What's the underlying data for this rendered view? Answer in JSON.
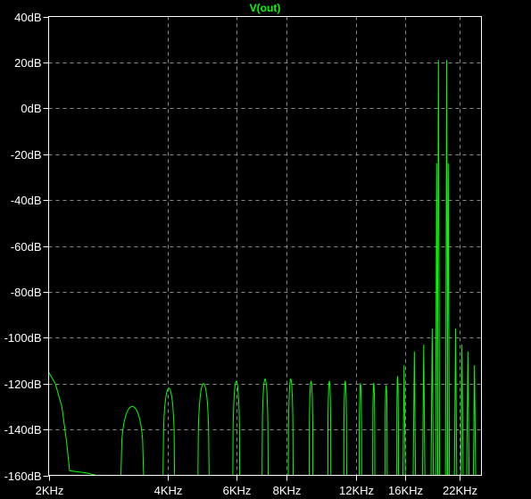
{
  "chart_data": {
    "type": "line",
    "title": "V(out)",
    "xlabel": "",
    "ylabel": "",
    "x_scale": "log",
    "xlim_hz": [
      2000,
      25000
    ],
    "ylim_db": [
      -160,
      40
    ],
    "grid": true,
    "x_ticks": [
      {
        "value": 2000,
        "label": "2KHz"
      },
      {
        "value": 4000,
        "label": "4KHz"
      },
      {
        "value": 6000,
        "label": "6KHz"
      },
      {
        "value": 8000,
        "label": "8KHz"
      },
      {
        "value": 12000,
        "label": "12KHz"
      },
      {
        "value": 16000,
        "label": "16KHz"
      },
      {
        "value": 22000,
        "label": "22KHz"
      }
    ],
    "y_ticks": [
      {
        "value": 40,
        "label": "40dB"
      },
      {
        "value": 20,
        "label": "20dB"
      },
      {
        "value": 0,
        "label": "0dB"
      },
      {
        "value": -20,
        "label": "-20dB"
      },
      {
        "value": -40,
        "label": "-40dB"
      },
      {
        "value": -60,
        "label": "-60dB"
      },
      {
        "value": -80,
        "label": "-80dB"
      },
      {
        "value": -100,
        "label": "-100dB"
      },
      {
        "value": -120,
        "label": "-120dB"
      },
      {
        "value": -140,
        "label": "-140dB"
      },
      {
        "value": -160,
        "label": "-160dB"
      }
    ],
    "series": [
      {
        "name": "V(out)",
        "color": "#00ff00",
        "lobes": [
          {
            "f_start": 3050,
            "f_end": 3480,
            "peak_db": -130
          },
          {
            "f_start": 3900,
            "f_end": 4170,
            "peak_db": -122
          },
          {
            "f_start": 4780,
            "f_end": 5100,
            "peak_db": -120
          },
          {
            "f_start": 5860,
            "f_end": 6100,
            "peak_db": -119
          },
          {
            "f_start": 6950,
            "f_end": 7200,
            "peak_db": -118
          },
          {
            "f_start": 8100,
            "f_end": 8330,
            "peak_db": -118
          },
          {
            "f_start": 9150,
            "f_end": 9350,
            "peak_db": -119
          },
          {
            "f_start": 10200,
            "f_end": 10380,
            "peak_db": -119
          },
          {
            "f_start": 11200,
            "f_end": 11380,
            "peak_db": -119
          },
          {
            "f_start": 12250,
            "f_end": 12420,
            "peak_db": -120
          },
          {
            "f_start": 13250,
            "f_end": 13420,
            "peak_db": -120
          },
          {
            "f_start": 14250,
            "f_end": 14420,
            "peak_db": -121
          },
          {
            "f_start": 15250,
            "f_end": 15400,
            "peak_db": -117
          }
        ],
        "spikes": [
          {
            "f": 15920,
            "db": -112
          },
          {
            "f": 16900,
            "db": -106
          },
          {
            "f": 17850,
            "db": -103
          },
          {
            "f": 18750,
            "db": -96
          },
          {
            "f": 19250,
            "db": -24
          },
          {
            "f": 19450,
            "db": 21
          },
          {
            "f": 20400,
            "db": 21
          },
          {
            "f": 20600,
            "db": -24
          },
          {
            "f": 21500,
            "db": -96
          },
          {
            "f": 22300,
            "db": -103
          },
          {
            "f": 23100,
            "db": -106
          },
          {
            "f": 24000,
            "db": -112
          }
        ],
        "start_curve": [
          {
            "f": 2000,
            "db": -115
          },
          {
            "f": 2080,
            "db": -120
          },
          {
            "f": 2160,
            "db": -130
          },
          {
            "f": 2220,
            "db": -145
          },
          {
            "f": 2260,
            "db": -158
          },
          {
            "f": 2500,
            "db": -159
          },
          {
            "f": 2640,
            "db": -160
          }
        ]
      }
    ]
  }
}
